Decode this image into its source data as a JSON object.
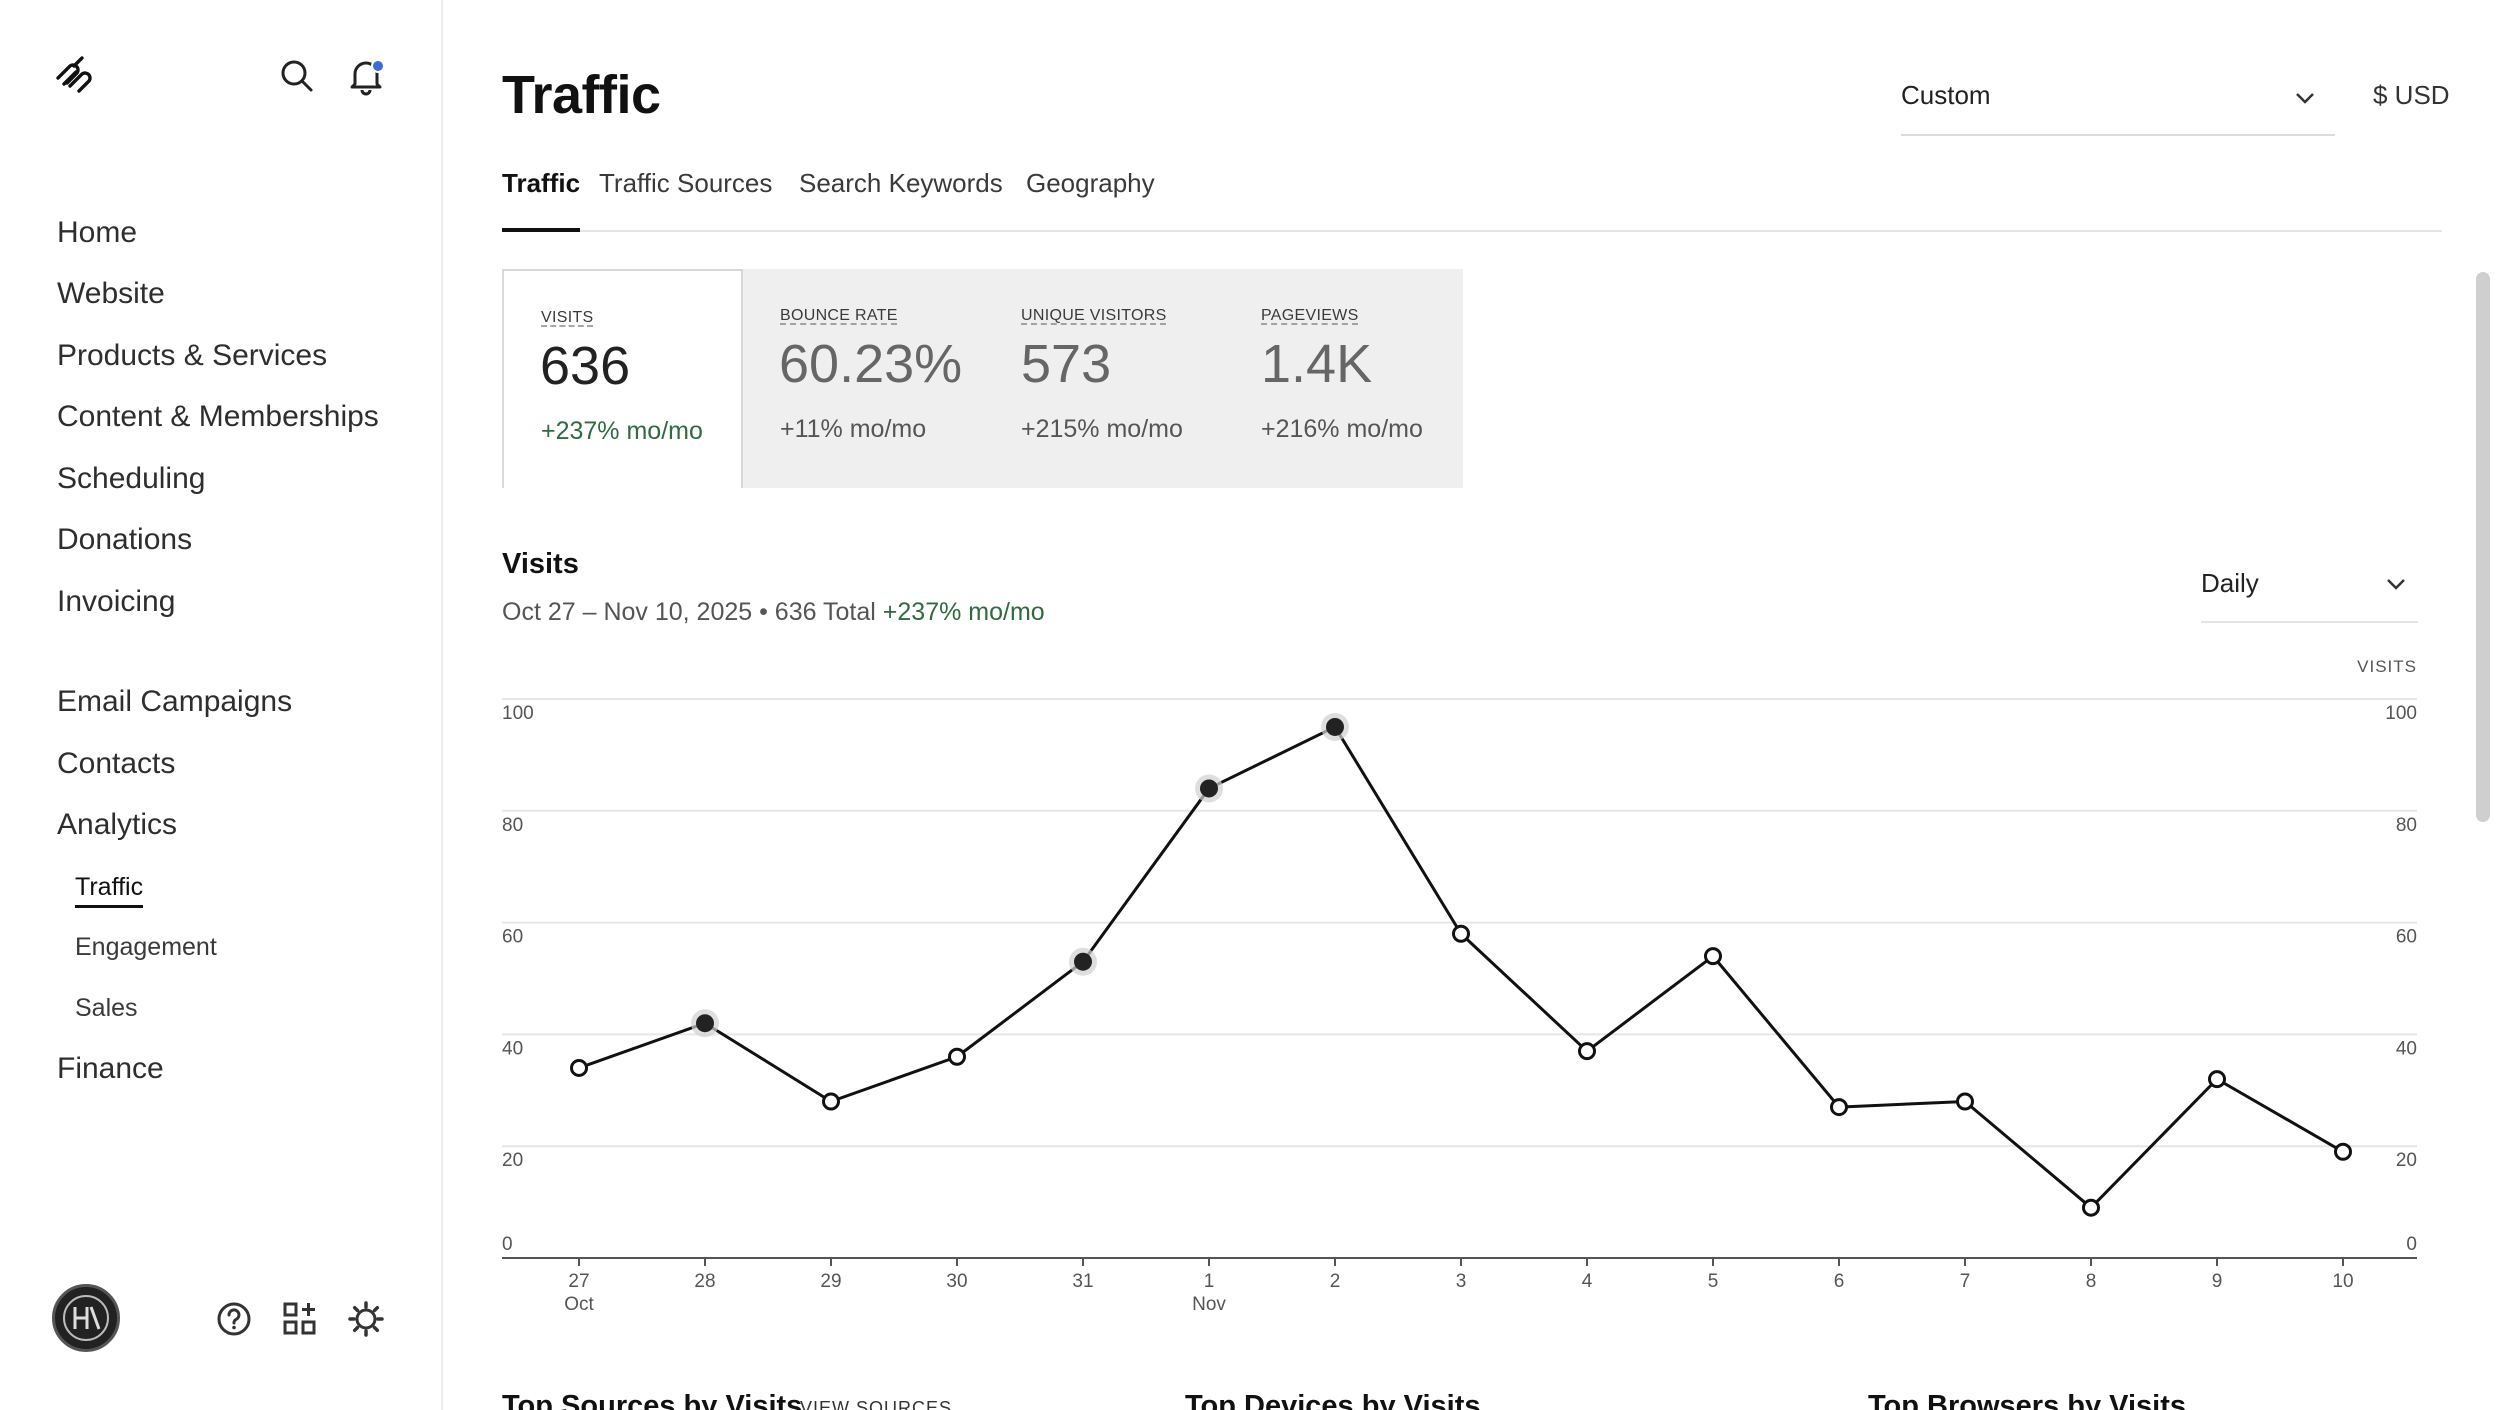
{
  "sidebar": {
    "nav": [
      {
        "label": "Home"
      },
      {
        "label": "Website"
      },
      {
        "label": "Products & Services"
      },
      {
        "label": "Content & Memberships"
      },
      {
        "label": "Scheduling"
      },
      {
        "label": "Donations"
      },
      {
        "label": "Invoicing"
      },
      {
        "label": "Email Campaigns"
      },
      {
        "label": "Contacts"
      },
      {
        "label": "Analytics"
      },
      {
        "label": "Finance"
      }
    ],
    "analytics_sub": [
      {
        "label": "Traffic",
        "active": true
      },
      {
        "label": "Engagement"
      },
      {
        "label": "Sales"
      }
    ],
    "icons": [
      "squarespace-logo",
      "search-icon",
      "bell-icon",
      "help-icon",
      "apps-icon",
      "settings-icon"
    ],
    "notification_color": "#3d6bd6"
  },
  "header": {
    "title": "Traffic",
    "date_range_select": "Custom",
    "currency": "$ USD"
  },
  "tabs": [
    {
      "label": "Traffic",
      "active": true
    },
    {
      "label": "Traffic Sources"
    },
    {
      "label": "Search Keywords"
    },
    {
      "label": "Geography"
    }
  ],
  "metrics": [
    {
      "label": "VISITS",
      "value": "636",
      "change": "+237% mo/mo",
      "active": true
    },
    {
      "label": "BOUNCE RATE",
      "value": "60.23%",
      "change": "+11% mo/mo"
    },
    {
      "label": "UNIQUE VISITORS",
      "value": "573",
      "change": "+215% mo/mo"
    },
    {
      "label": "PAGEVIEWS",
      "value": "1.4K",
      "change": "+216% mo/mo"
    }
  ],
  "chart_section": {
    "title": "Visits",
    "subtitle": "Oct 27 – Nov 10, 2025 • 636 Total",
    "subtitle_change": "+237% mo/mo",
    "granularity": "Daily"
  },
  "chart_data": {
    "type": "line",
    "ylabel_right": "VISITS",
    "x": [
      "27",
      "28",
      "29",
      "30",
      "31",
      "1",
      "2",
      "3",
      "4",
      "5",
      "6",
      "7",
      "8",
      "9",
      "10"
    ],
    "x_month_labels": {
      "0": "Oct",
      "5": "Nov"
    },
    "values": [
      34,
      42,
      28,
      36,
      53,
      84,
      95,
      58,
      37,
      54,
      27,
      28,
      9,
      32,
      19
    ],
    "highlighted": [
      1,
      4,
      5,
      6
    ],
    "ylim": [
      0,
      100
    ],
    "yticks": [
      0,
      20,
      40,
      60,
      80,
      100
    ],
    "grid": true,
    "line_color": "#111111",
    "grid_color": "#e6e6e6"
  },
  "bottom_sections": {
    "sources_title": "Top Sources by Visits",
    "sources_link": "VIEW SOURCES",
    "devices_title": "Top Devices by Visits",
    "browsers_title": "Top Browsers by Visits"
  }
}
